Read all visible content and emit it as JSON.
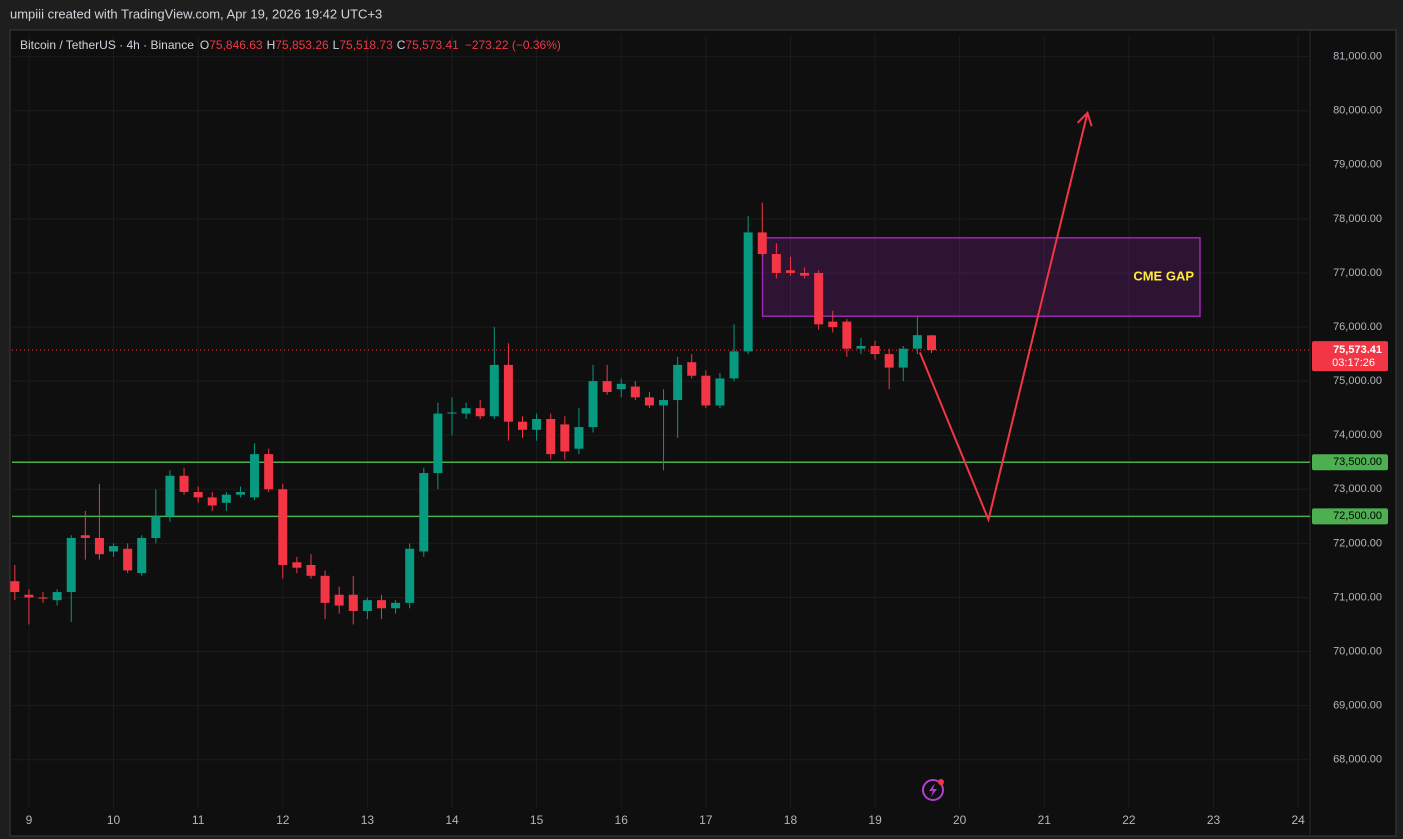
{
  "header": {
    "caption": "umpiii created with TradingView.com, Apr 19, 2026 19:42 UTC+3"
  },
  "chart_data": {
    "type": "candlestick",
    "symbol": "Bitcoin / TetherUS · 4h · Binance",
    "legend": [
      {
        "key": "O",
        "value": "75,846.63"
      },
      {
        "key": "H",
        "value": "75,853.26"
      },
      {
        "key": "L",
        "value": "75,518.73"
      },
      {
        "key": "C",
        "value": "75,573.41"
      }
    ],
    "change": "−273.22 (−0.36%)",
    "up_color": "#089981",
    "down_color": "#f23645",
    "x": [
      8.8333,
      9,
      9.1667,
      9.3333,
      9.5,
      9.6667,
      9.8333,
      10,
      10.1667,
      10.3333,
      10.5,
      10.6667,
      10.8333,
      11,
      11.1667,
      11.3333,
      11.5,
      11.6667,
      11.8333,
      12,
      12.1667,
      12.3333,
      12.5,
      12.6667,
      12.8333,
      13,
      13.1667,
      13.3333,
      13.5,
      13.6667,
      13.8333,
      14,
      14.1667,
      14.3333,
      14.5,
      14.6667,
      14.8333,
      15,
      15.1667,
      15.3333,
      15.5,
      15.6667,
      15.8333,
      16,
      16.1667,
      16.3333,
      16.5,
      16.6667,
      16.8333,
      17,
      17.1667,
      17.3333,
      17.5,
      17.6667,
      17.8333,
      18,
      18.1667,
      18.3333,
      18.5,
      18.6667,
      18.8333,
      19,
      19.1667,
      19.3333,
      19.5,
      19.6667
    ],
    "open": [
      71300,
      71050,
      71000,
      70950,
      71100,
      72150,
      72100,
      71850,
      71900,
      71450,
      72100,
      72500,
      73250,
      72950,
      72850,
      72750,
      72900,
      72850,
      73650,
      73000,
      71650,
      71600,
      71400,
      71050,
      71050,
      70750,
      70950,
      70800,
      70900,
      71850,
      73300,
      74400,
      74400,
      74500,
      74350,
      75300,
      74250,
      74100,
      74300,
      74200,
      73750,
      74150,
      75000,
      74850,
      74900,
      74700,
      74550,
      74650,
      75350,
      75100,
      74550,
      75050,
      75550,
      77750,
      77350,
      77050,
      77000,
      77000,
      76100,
      76100,
      75600,
      75650,
      75500,
      75250,
      75600,
      75846.63
    ],
    "high": [
      71600,
      71150,
      71100,
      71150,
      72150,
      72600,
      73100,
      72000,
      72000,
      72150,
      73000,
      73350,
      73400,
      73050,
      72950,
      72950,
      73050,
      73850,
      73750,
      73100,
      71750,
      71800,
      71500,
      71200,
      71400,
      71000,
      71050,
      70950,
      72000,
      73400,
      74600,
      74700,
      74600,
      74650,
      76000,
      75700,
      74350,
      74400,
      74400,
      74350,
      74500,
      75300,
      75300,
      75050,
      75000,
      74800,
      74850,
      75450,
      75500,
      75200,
      75150,
      76050,
      78050,
      78300,
      77550,
      77300,
      77100,
      77050,
      76300,
      76150,
      75800,
      75750,
      75600,
      75650,
      76200,
      75853.26
    ],
    "low": [
      70950,
      70500,
      70900,
      70850,
      70550,
      71700,
      71700,
      71750,
      71450,
      71400,
      72000,
      72400,
      72900,
      72750,
      72600,
      72600,
      72850,
      72800,
      72950,
      71350,
      71450,
      71350,
      70600,
      70700,
      70500,
      70600,
      70600,
      70700,
      70800,
      71750,
      73000,
      74000,
      74300,
      74300,
      74300,
      73900,
      73950,
      73900,
      73550,
      73550,
      73650,
      74050,
      74750,
      74700,
      74650,
      74500,
      73350,
      73950,
      75050,
      74500,
      74500,
      75000,
      75500,
      77300,
      76900,
      76950,
      76900,
      75950,
      75900,
      75450,
      75500,
      75400,
      74850,
      75000,
      75500,
      75518.73
    ],
    "close": [
      71100,
      71000,
      70980,
      71100,
      72100,
      72100,
      71800,
      71950,
      71500,
      72100,
      72500,
      73250,
      72950,
      72850,
      72700,
      72900,
      72950,
      73650,
      73000,
      71600,
      71550,
      71400,
      70900,
      70850,
      70750,
      70950,
      70800,
      70900,
      71900,
      73300,
      74400,
      74420,
      74500,
      74350,
      75300,
      74250,
      74100,
      74300,
      73650,
      73700,
      74150,
      75000,
      74800,
      74950,
      74700,
      74550,
      74650,
      75300,
      75100,
      74550,
      75050,
      75550,
      77750,
      77350,
      77000,
      77000,
      76950,
      76050,
      76000,
      75600,
      75650,
      75500,
      75250,
      75600,
      75850,
      75573.41
    ],
    "xlim": [
      8.8,
      24.14
    ],
    "xticks": [
      9,
      10,
      11,
      12,
      13,
      14,
      15,
      16,
      17,
      18,
      19,
      20,
      21,
      22,
      23,
      24
    ],
    "ylim": [
      66700,
      81400
    ],
    "yticks": [
      {
        "value": 68000,
        "label": "68,000.00"
      },
      {
        "value": 69000,
        "label": "69,000.00"
      },
      {
        "value": 70000,
        "label": "70,000.00"
      },
      {
        "value": 71000,
        "label": "71,000.00"
      },
      {
        "value": 72000,
        "label": "72,000.00"
      },
      {
        "value": 73000,
        "label": "73,000.00"
      },
      {
        "value": 74000,
        "label": "74,000.00"
      },
      {
        "value": 75000,
        "label": "75,000.00"
      },
      {
        "value": 76000,
        "label": "76,000.00"
      },
      {
        "value": 77000,
        "label": "77,000.00"
      },
      {
        "value": 78000,
        "label": "78,000.00"
      },
      {
        "value": 79000,
        "label": "79,000.00"
      },
      {
        "value": 80000,
        "label": "80,000.00"
      },
      {
        "value": 81000,
        "label": "81,000.00"
      }
    ],
    "grid": true,
    "levels": [
      {
        "value": 73500,
        "label": "73,500.00",
        "color": "#4caf50"
      },
      {
        "value": 72500,
        "label": "72,500.00",
        "color": "#4caf50"
      }
    ],
    "last_price": {
      "value": 75573.41,
      "label": "75,573.41",
      "countdown": "03:17:26",
      "color": "#f23645"
    },
    "gap_zone": {
      "label": "CME GAP",
      "x": [
        17.67,
        22.84
      ],
      "y": [
        76200,
        77650
      ],
      "color": "#9c27b0"
    },
    "projection": {
      "x": [
        19.53,
        20.34,
        21.51
      ],
      "y": [
        75530,
        72440,
        79960
      ],
      "color": "#f23645"
    }
  }
}
